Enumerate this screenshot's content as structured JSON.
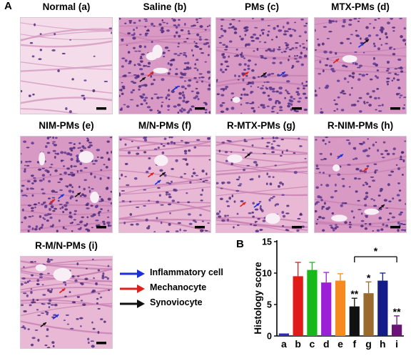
{
  "panel_labels": {
    "a": "A",
    "b": "B"
  },
  "tiles": [
    {
      "id": "a",
      "title": "Normal (a)",
      "tissue": "normal"
    },
    {
      "id": "b",
      "title": "Saline (b)",
      "tissue": "inflamed"
    },
    {
      "id": "c",
      "title": "PMs (c)",
      "tissue": "inflamed"
    },
    {
      "id": "d",
      "title": "MTX-PMs (d)",
      "tissue": "mixed"
    },
    {
      "id": "e",
      "title": "NIM-PMs (e)",
      "tissue": "inflamed"
    },
    {
      "id": "f",
      "title": "M/N-PMs (f)",
      "tissue": "fibrous"
    },
    {
      "id": "g",
      "title": "R-MTX-PMs (g)",
      "tissue": "fibrous"
    },
    {
      "id": "h",
      "title": "R-NIM-PMs (h)",
      "tissue": "mixed"
    },
    {
      "id": "i",
      "title": "R-M/N-PMs (i)",
      "tissue": "fibrous"
    }
  ],
  "legend": [
    {
      "label": "Inflammatory cell",
      "color": "#1a2fd6"
    },
    {
      "label": "Mechanocyte",
      "color": "#e0201c"
    },
    {
      "label": "Synoviocyte",
      "color": "#111111"
    }
  ],
  "chart_data": {
    "type": "bar",
    "ylabel": "Histology score",
    "xlabel": "",
    "ylim": [
      0,
      15
    ],
    "yticks": [
      0,
      5,
      10,
      15
    ],
    "categories": [
      "a",
      "b",
      "c",
      "d",
      "e",
      "f",
      "g",
      "h",
      "i"
    ],
    "values": [
      0.4,
      9.5,
      10.5,
      8.5,
      8.8,
      4.7,
      6.8,
      8.8,
      1.8
    ],
    "errors": [
      0,
      2.2,
      1.2,
      1.6,
      1.1,
      1.3,
      1.8,
      1.2,
      1.4
    ],
    "colors": [
      "#2a2ac8",
      "#e11a1a",
      "#17b81a",
      "#9a1fd6",
      "#f58a1f",
      "#111111",
      "#9b6a2f",
      "#141c8a",
      "#6b1478"
    ],
    "significance": [
      {
        "category": "f",
        "mark": "**"
      },
      {
        "category": "g",
        "mark": "*"
      },
      {
        "category": "i",
        "mark": "**"
      }
    ],
    "bracket": {
      "from": "f",
      "to": "i",
      "mark": "*"
    }
  }
}
